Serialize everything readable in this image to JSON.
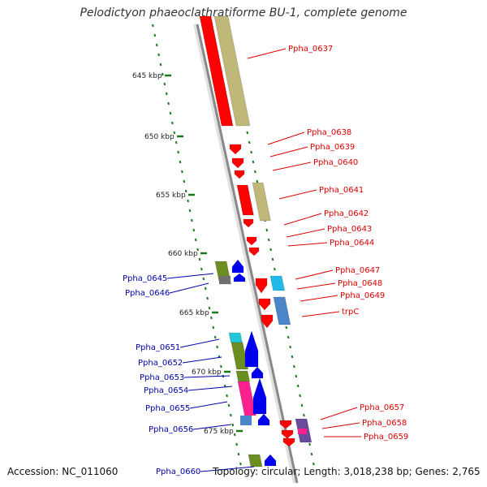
{
  "title": "Pelodictyon phaeoclathratiforme BU-1, complete genome",
  "footer": {
    "accession": "Accession: NC_011060",
    "topology": "Topology: circular; Length: 3,018,238 bp; Genes: 2,765"
  },
  "colors": {
    "forward_gene": "#ff0000",
    "reverse_gene": "#0000ee",
    "forward_label": "#dd0000",
    "reverse_label": "#0000aa",
    "cds_product": "#c0b878",
    "reverse_cds_product": "#6b8e23",
    "scale_marker": "#1a7a1a",
    "backbone": "#888888"
  },
  "scale_labels": [
    "645 kbp",
    "650 kbp",
    "655 kbp",
    "660 kbp",
    "665 kbp",
    "670 kbp",
    "675 kbp"
  ],
  "forward_genes": [
    "Ppha_0637",
    "Ppha_0638",
    "Ppha_0639",
    "Ppha_0640",
    "Ppha_0641",
    "Ppha_0642",
    "Ppha_0643",
    "Ppha_0644",
    "Ppha_0647",
    "Ppha_0648",
    "Ppha_0649",
    "trpC",
    "Ppha_0657",
    "Ppha_0658",
    "Ppha_0659"
  ],
  "reverse_genes": [
    "Ppha_0645",
    "Ppha_0646",
    "Ppha_0651",
    "Ppha_0652",
    "Ppha_0653",
    "Ppha_0654",
    "Ppha_0655",
    "Ppha_0656",
    "Ppha_0660"
  ]
}
